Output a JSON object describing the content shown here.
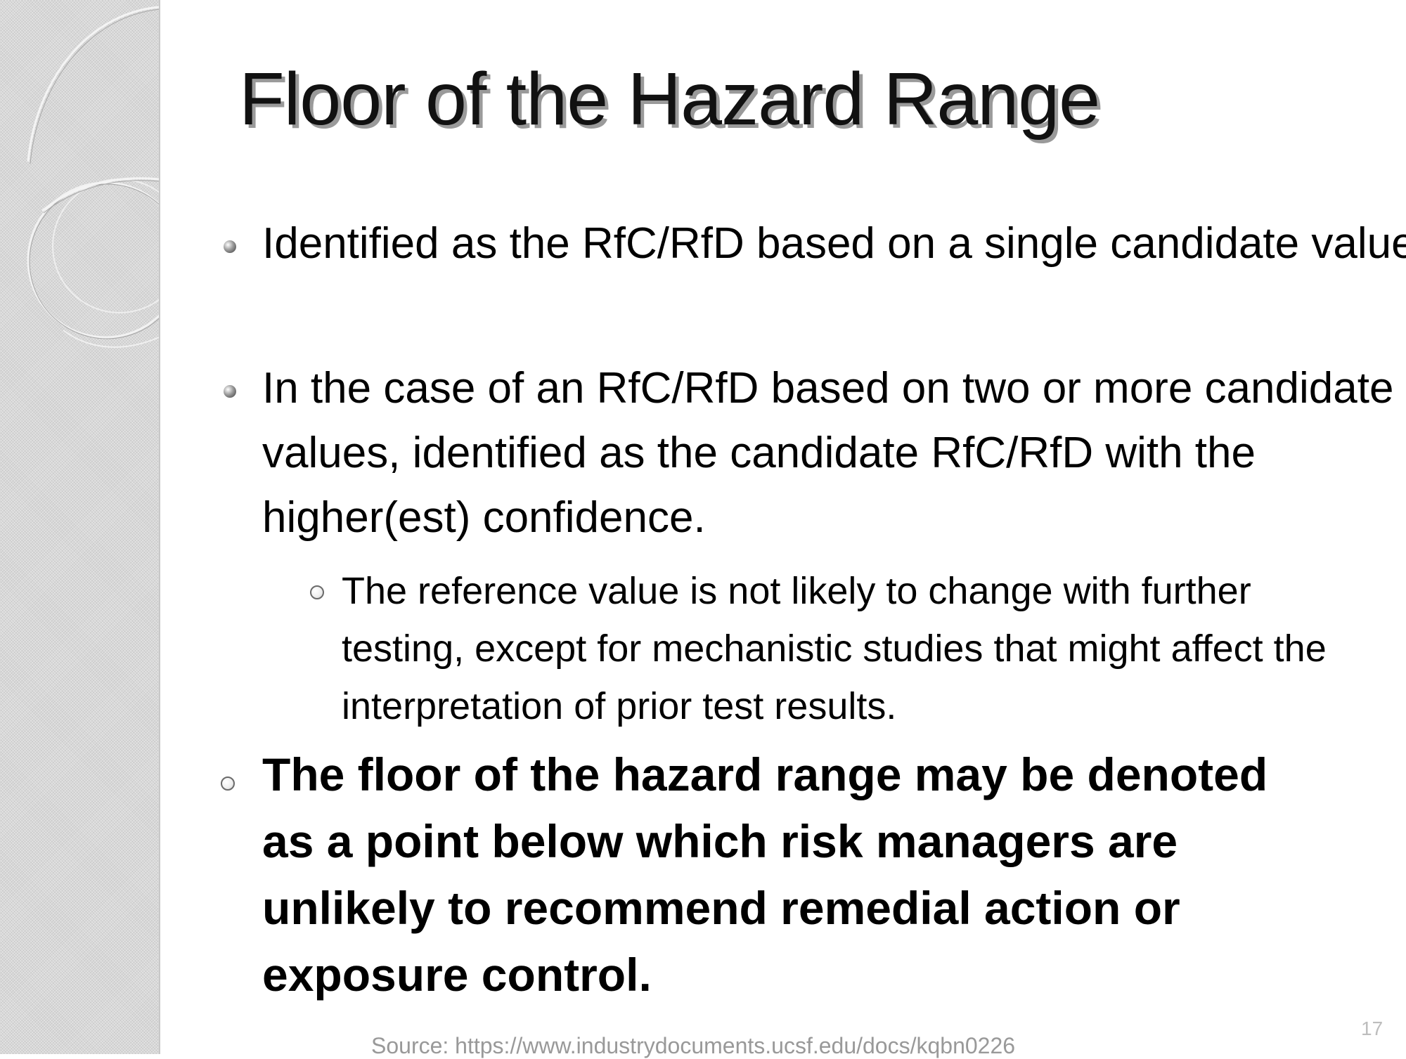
{
  "slide": {
    "title": "Floor of the Hazard Range",
    "bullets": [
      {
        "text": "Identified as the RfC/RfD based on a single candidate value"
      },
      {
        "text": "In the case of an RfC/RfD based on two or more candidate values, identified as the candidate RfC/RfD with the higher(est) confidence."
      }
    ],
    "sub_bullet": {
      "text": "The reference value is not likely to change with further testing, except for mechanistic studies that might affect the interpretation of prior test results."
    },
    "bold_bullet": {
      "text": "The floor of the hazard range may be denoted as a point below which risk managers are unlikely to recommend remedial action or exposure control."
    },
    "page_number": "17"
  },
  "footer": {
    "source": "Source: https://www.industrydocuments.ucsf.edu/docs/kqbn0226"
  },
  "colors": {
    "side_strip": "#d8d8d8",
    "title_shadow": "#9a9a9a",
    "source_text": "#999999"
  },
  "icons": {
    "bullet_filled": "filled-dot-icon",
    "bullet_hollow": "hollow-circle-icon"
  }
}
